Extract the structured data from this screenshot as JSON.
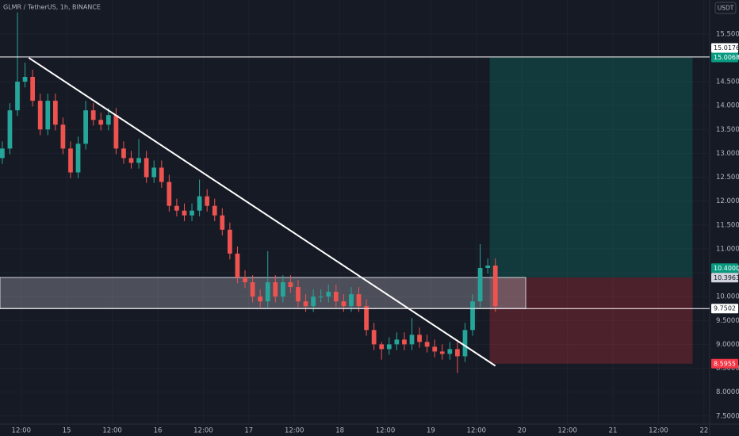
{
  "chart_data": {
    "type": "candlestick",
    "title": "GLMR / TetherUS, 1h, BINANCE",
    "currency": "USDT",
    "up_color": "#26a69a",
    "down_color": "#ef5350",
    "grid": true,
    "x": [
      -5,
      -3,
      -1,
      1,
      3,
      5,
      7,
      9,
      11,
      13,
      15,
      17,
      19,
      21,
      23,
      25,
      27,
      29,
      31,
      33,
      35,
      37,
      39,
      41,
      43,
      45,
      47,
      49,
      51,
      53,
      55,
      57,
      59,
      61,
      63,
      65,
      67,
      69,
      71,
      73,
      75,
      77,
      79,
      81,
      83,
      85,
      87,
      89,
      91,
      93,
      95,
      97,
      99,
      101,
      103,
      105,
      107,
      109,
      111,
      113,
      115,
      117,
      119,
      121,
      123,
      125
    ],
    "open": [
      12.9,
      13.1,
      13.9,
      14.5,
      14.6,
      14.1,
      13.5,
      14.1,
      13.6,
      13.1,
      12.6,
      13.2,
      13.9,
      13.7,
      13.6,
      13.8,
      13.1,
      12.9,
      12.8,
      12.9,
      12.5,
      12.7,
      12.4,
      11.9,
      11.8,
      11.7,
      11.8,
      12.1,
      11.9,
      11.7,
      11.4,
      10.9,
      10.4,
      10.3,
      10.0,
      9.9,
      10.3,
      10.0,
      10.3,
      10.2,
      9.9,
      9.8,
      10.0,
      10.0,
      10.1,
      9.9,
      9.8,
      10.05,
      9.8,
      9.3,
      9.0,
      8.9,
      9.0,
      9.1,
      9.0,
      9.2,
      9.05,
      8.95,
      8.85,
      8.8,
      8.9,
      8.75,
      9.3,
      9.9,
      10.6,
      10.65
    ],
    "high": [
      13.25,
      14.05,
      15.95,
      14.9,
      14.75,
      14.25,
      14.25,
      14.25,
      13.75,
      13.25,
      13.35,
      14.1,
      14.05,
      13.85,
      13.95,
      13.95,
      13.25,
      13.05,
      13.3,
      13.05,
      12.85,
      12.85,
      12.55,
      12.05,
      11.95,
      11.95,
      12.45,
      12.25,
      12.05,
      11.85,
      11.55,
      11.05,
      10.55,
      10.45,
      10.15,
      10.95,
      10.45,
      10.45,
      10.45,
      10.35,
      10.05,
      10.15,
      10.15,
      10.25,
      10.25,
      10.05,
      10.2,
      10.2,
      9.95,
      9.45,
      9.05,
      9.15,
      9.25,
      9.25,
      9.55,
      9.35,
      9.2,
      9.1,
      9.0,
      9.05,
      9.05,
      9.45,
      10.05,
      11.1,
      10.8,
      10.8
    ],
    "low": [
      12.78,
      12.98,
      13.78,
      14.38,
      13.98,
      13.38,
      13.38,
      13.48,
      12.98,
      12.48,
      12.48,
      13.08,
      13.58,
      13.48,
      13.48,
      12.98,
      12.78,
      12.68,
      12.68,
      12.38,
      12.38,
      12.28,
      11.78,
      11.68,
      11.58,
      11.58,
      11.68,
      11.78,
      11.58,
      11.28,
      10.78,
      10.28,
      10.18,
      9.88,
      9.78,
      9.78,
      9.88,
      9.88,
      10.08,
      9.78,
      9.68,
      9.68,
      9.88,
      9.88,
      9.78,
      9.68,
      9.68,
      9.68,
      9.18,
      8.88,
      8.68,
      8.78,
      8.88,
      8.88,
      8.88,
      8.93,
      8.83,
      8.73,
      8.68,
      8.68,
      8.4,
      8.63,
      9.18,
      9.78,
      10.48,
      9.68
    ],
    "close": [
      13.1,
      13.9,
      14.5,
      14.6,
      14.1,
      13.5,
      14.1,
      13.6,
      13.1,
      12.6,
      13.2,
      13.9,
      13.7,
      13.6,
      13.8,
      13.1,
      12.9,
      12.8,
      12.9,
      12.5,
      12.7,
      12.4,
      11.9,
      11.8,
      11.7,
      11.8,
      12.1,
      11.9,
      11.7,
      11.4,
      10.9,
      10.4,
      10.3,
      10.0,
      9.9,
      10.3,
      10.0,
      10.3,
      10.2,
      9.9,
      9.8,
      10.0,
      10.0,
      10.1,
      9.9,
      9.8,
      10.05,
      9.8,
      9.3,
      9.0,
      8.9,
      9.0,
      9.1,
      9.0,
      9.2,
      9.05,
      8.95,
      8.85,
      8.8,
      8.9,
      8.75,
      9.3,
      9.9,
      10.6,
      10.65,
      9.8
    ],
    "xlim": [
      -5.6,
      181.5
    ],
    "xticks": [
      {
        "value": 0,
        "label": "12:00"
      },
      {
        "value": 12,
        "label": "15"
      },
      {
        "value": 24,
        "label": "12:00"
      },
      {
        "value": 36,
        "label": "16"
      },
      {
        "value": 48,
        "label": "12:00"
      },
      {
        "value": 60,
        "label": "17"
      },
      {
        "value": 72,
        "label": "12:00"
      },
      {
        "value": 84,
        "label": "18"
      },
      {
        "value": 96,
        "label": "12:00"
      },
      {
        "value": 108,
        "label": "19"
      },
      {
        "value": 120,
        "label": "12:00"
      },
      {
        "value": 132,
        "label": "20"
      },
      {
        "value": 144,
        "label": "12:00"
      },
      {
        "value": 156,
        "label": "21"
      },
      {
        "value": 168,
        "label": "12:00"
      },
      {
        "value": 180,
        "label": "22"
      }
    ],
    "ylim": [
      7.33,
      16.21
    ],
    "yticks": [
      {
        "value": 7.5,
        "label": "7.5000"
      },
      {
        "value": 8,
        "label": "8.0000"
      },
      {
        "value": 8.5,
        "label": "8.5000"
      },
      {
        "value": 9,
        "label": "9.0000"
      },
      {
        "value": 9.5,
        "label": "9.5000"
      },
      {
        "value": 10,
        "label": "10.0000"
      },
      {
        "value": 10.5,
        "label": "10.5000"
      },
      {
        "value": 11,
        "label": "11.0000"
      },
      {
        "value": 11.5,
        "label": "11.5000"
      },
      {
        "value": 12,
        "label": "12.0000"
      },
      {
        "value": 12.5,
        "label": "12.5000"
      },
      {
        "value": 13,
        "label": "13.0000"
      },
      {
        "value": 13.5,
        "label": "13.5000"
      },
      {
        "value": 14,
        "label": "14.0000"
      },
      {
        "value": 14.5,
        "label": "14.5000"
      },
      {
        "value": 15,
        "label": "15.0000"
      },
      {
        "value": 15.5,
        "label": "15.5000"
      }
    ],
    "levels": [
      {
        "value": 15.0176,
        "label": "15.0176"
      },
      {
        "value": 9.7502,
        "label": "9.7502"
      }
    ],
    "trendline": {
      "x": [
        2,
        125
      ],
      "y": [
        15.0,
        8.55
      ]
    },
    "zone": {
      "low": 9.7502,
      "high": 10.4,
      "x_end": 133
    },
    "position": {
      "x_start": 123.5,
      "x_end": 177,
      "entry": {
        "value": 10.4,
        "label": "10.4000"
      },
      "target": {
        "value": 15.0068,
        "label": "15.0068"
      },
      "stop": {
        "value": 8.5955,
        "label": "8.5955"
      }
    },
    "last_price": {
      "value": 10.3963,
      "label": "10.3963"
    }
  }
}
